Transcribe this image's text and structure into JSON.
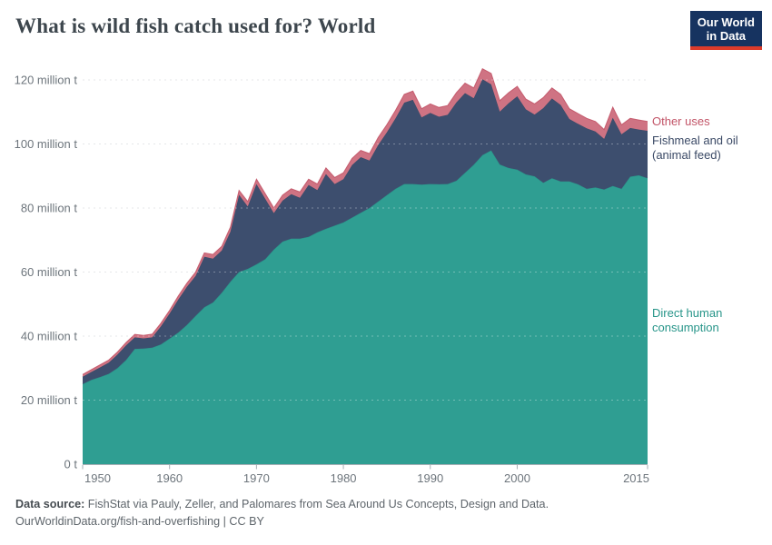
{
  "header": {
    "title": "What is wild fish catch used for? World"
  },
  "logo": {
    "line1": "Our World",
    "line2": "in Data",
    "bg_color": "#163360",
    "bar_color": "#dc3b2b"
  },
  "chart_data": {
    "type": "area",
    "stacked": true,
    "title": "What is wild fish catch used for? World",
    "unit": "million t",
    "grid": true,
    "legend_position": "right",
    "x_range": [
      1950,
      2015
    ],
    "ylim": [
      0,
      120
    ],
    "xlabel": "",
    "ylabel": "",
    "years": [
      1950,
      1951,
      1952,
      1953,
      1954,
      1955,
      1956,
      1957,
      1958,
      1959,
      1960,
      1961,
      1962,
      1963,
      1964,
      1965,
      1966,
      1967,
      1968,
      1969,
      1970,
      1971,
      1972,
      1973,
      1974,
      1975,
      1976,
      1977,
      1978,
      1979,
      1980,
      1981,
      1982,
      1983,
      1984,
      1985,
      1986,
      1987,
      1988,
      1989,
      1990,
      1991,
      1992,
      1993,
      1994,
      1995,
      1996,
      1997,
      1998,
      1999,
      2000,
      2001,
      2002,
      2003,
      2004,
      2005,
      2006,
      2007,
      2008,
      2009,
      2010,
      2011,
      2012,
      2013,
      2014,
      2015
    ],
    "series": [
      {
        "name": "Direct human consumption",
        "color": "#2f9e92",
        "label_color": "#279589",
        "values": [
          25.0,
          26.3,
          27.2,
          28.2,
          30.0,
          32.5,
          36.0,
          36.1,
          36.4,
          37.4,
          39.2,
          41.1,
          43.5,
          46.3,
          49.0,
          50.5,
          53.5,
          57.0,
          60.0,
          61.0,
          62.4,
          64.0,
          67.0,
          69.5,
          70.4,
          70.4,
          71.0,
          72.4,
          73.5,
          74.5,
          75.5,
          77.0,
          78.5,
          80.0,
          82.0,
          84.0,
          86.0,
          87.5,
          87.5,
          87.3,
          87.5,
          87.4,
          87.5,
          88.5,
          91.0,
          93.5,
          96.5,
          98.0,
          93.6,
          92.5,
          92.0,
          90.5,
          89.9,
          87.9,
          89.3,
          88.3,
          88.3,
          87.4,
          86.0,
          86.4,
          85.8,
          86.9,
          86.0,
          89.8,
          90.2,
          89.3
        ]
      },
      {
        "name": "Fishmeal and oil (animal feed)",
        "color": "#3d4e6e",
        "label_color": "#3b4a66",
        "values": [
          2.3,
          2.5,
          3.0,
          3.5,
          4.2,
          4.6,
          3.6,
          3.2,
          3.2,
          5.6,
          7.8,
          10.3,
          11.9,
          12.5,
          15.8,
          13.7,
          13.2,
          15.6,
          24.1,
          19.5,
          25.1,
          18.9,
          11.4,
          12.8,
          13.9,
          12.8,
          16.2,
          13.2,
          17.1,
          13.0,
          13.5,
          16.4,
          17.4,
          14.8,
          17.7,
          19.6,
          22.0,
          25.4,
          26.3,
          21.0,
          22.2,
          21.1,
          21.6,
          24.5,
          24.9,
          20.8,
          23.7,
          20.6,
          16.5,
          20.2,
          22.9,
          20.3,
          19.3,
          23.3,
          24.9,
          23.9,
          19.5,
          18.9,
          18.9,
          17.5,
          15.8,
          21.3,
          17.0,
          15.2,
          14.3,
          14.8
        ]
      },
      {
        "name": "Other uses",
        "color": "#cf7383",
        "label_color": "#c25467",
        "values": [
          0.7,
          0.7,
          0.8,
          0.8,
          0.8,
          0.9,
          0.9,
          0.9,
          1.0,
          1.0,
          1.0,
          1.1,
          1.1,
          1.2,
          1.2,
          1.3,
          1.3,
          1.4,
          1.4,
          1.5,
          1.5,
          1.6,
          1.6,
          1.7,
          1.7,
          1.8,
          1.8,
          1.9,
          1.9,
          2.0,
          2.0,
          2.1,
          2.1,
          2.2,
          2.3,
          2.4,
          2.5,
          2.6,
          2.7,
          2.7,
          2.8,
          2.9,
          2.9,
          3.0,
          3.1,
          3.2,
          3.3,
          3.4,
          3.4,
          3.3,
          3.1,
          3.2,
          3.3,
          3.3,
          3.3,
          3.3,
          3.2,
          3.2,
          3.1,
          3.1,
          2.9,
          3.3,
          3.0,
          3.0,
          3.0,
          2.9
        ]
      }
    ],
    "y_ticks": [
      {
        "value": 0,
        "label": "0 t"
      },
      {
        "value": 20,
        "label": "20 million t"
      },
      {
        "value": 40,
        "label": "40 million t"
      },
      {
        "value": 60,
        "label": "60 million t"
      },
      {
        "value": 80,
        "label": "80 million t"
      },
      {
        "value": 100,
        "label": "100 million t"
      },
      {
        "value": 120,
        "label": "120 million t"
      }
    ],
    "x_ticks": [
      {
        "value": 1950,
        "label": "1950"
      },
      {
        "value": 1960,
        "label": "1960"
      },
      {
        "value": 1970,
        "label": "1970"
      },
      {
        "value": 1980,
        "label": "1980"
      },
      {
        "value": 1990,
        "label": "1990"
      },
      {
        "value": 2000,
        "label": "2000"
      },
      {
        "value": 2015,
        "label": "2015"
      }
    ],
    "legend": [
      {
        "series": "Other uses",
        "lines": [
          "Other uses",
          ""
        ]
      },
      {
        "series": "Fishmeal and oil (animal feed)",
        "lines": [
          "Fishmeal and oil",
          "(animal feed)"
        ]
      },
      {
        "series": "Direct human consumption",
        "lines": [
          "Direct human",
          "consumption"
        ]
      }
    ]
  },
  "footer": {
    "source_label": "Data source:",
    "source_text": "FishStat via Pauly, Zeller, and Palomares from Sea Around Us Concepts, Design and Data.",
    "license_line": "OurWorldinData.org/fish-and-overfishing | CC BY"
  }
}
